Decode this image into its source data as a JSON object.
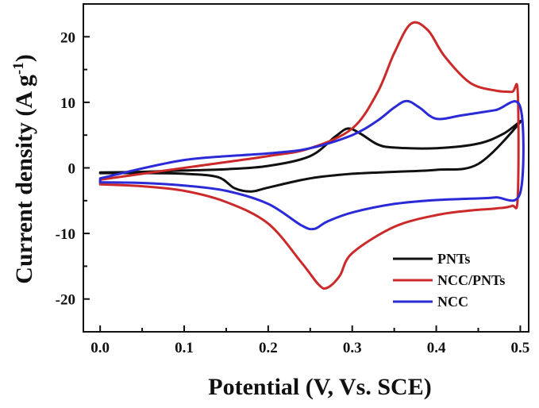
{
  "chart_data": {
    "type": "line",
    "title": "",
    "xlabel": "Potential (V, Vs. SCE)",
    "ylabel_main": "Current density (A g",
    "ylabel_sup": "-1",
    "ylabel_close": ")",
    "xlim": [
      -0.02,
      0.51
    ],
    "ylim": [
      -25,
      25
    ],
    "xticks": [
      "0.0",
      "0.1",
      "0.2",
      "0.3",
      "0.4",
      "0.5"
    ],
    "yticks": [
      "-20",
      "-10",
      "0",
      "10",
      "20"
    ],
    "grid": false,
    "legend_position": "bottom-right",
    "series": [
      {
        "name": "PNTs",
        "color": "#111111",
        "x": [
          0.0,
          0.05,
          0.1,
          0.15,
          0.2,
          0.25,
          0.28,
          0.295,
          0.31,
          0.33,
          0.35,
          0.4,
          0.45,
          0.48,
          0.5,
          0.45,
          0.4,
          0.35,
          0.3,
          0.25,
          0.2,
          0.18,
          0.16,
          0.14,
          0.1,
          0.05,
          0.0
        ],
        "y": [
          -0.7,
          -0.6,
          -0.4,
          -0.2,
          0.3,
          1.8,
          4.8,
          6.0,
          5.2,
          3.6,
          3.1,
          3.0,
          3.7,
          5.2,
          7.0,
          0.6,
          -0.3,
          -0.6,
          -0.9,
          -1.6,
          -3.0,
          -3.6,
          -3.1,
          -1.4,
          -0.9,
          -0.8,
          -0.8
        ]
      },
      {
        "name": "NCC/PNTs",
        "color": "#cc2a2a",
        "x": [
          0.0,
          0.1,
          0.2,
          0.25,
          0.3,
          0.33,
          0.35,
          0.37,
          0.39,
          0.41,
          0.44,
          0.47,
          0.49,
          0.497,
          0.497,
          0.49,
          0.47,
          0.44,
          0.4,
          0.35,
          0.3,
          0.285,
          0.27,
          0.26,
          0.24,
          0.2,
          0.15,
          0.1,
          0.05,
          0.0
        ],
        "y": [
          -1.8,
          0.0,
          1.8,
          3.0,
          6.0,
          11.5,
          17.5,
          22.0,
          21.0,
          17.0,
          13.0,
          11.8,
          11.6,
          11.6,
          -4.5,
          -5.8,
          -6.2,
          -6.5,
          -7.2,
          -9.0,
          -13.0,
          -16.5,
          -18.3,
          -17.8,
          -14.5,
          -8.5,
          -5.2,
          -3.5,
          -2.8,
          -2.5
        ]
      },
      {
        "name": "NCC",
        "color": "#2a2ad6",
        "x": [
          0.0,
          0.1,
          0.2,
          0.25,
          0.3,
          0.33,
          0.35,
          0.365,
          0.38,
          0.4,
          0.43,
          0.47,
          0.5,
          0.5,
          0.47,
          0.44,
          0.4,
          0.35,
          0.3,
          0.27,
          0.255,
          0.24,
          0.2,
          0.15,
          0.1,
          0.05,
          0.0
        ],
        "y": [
          -1.6,
          1.2,
          2.2,
          3.0,
          5.0,
          7.2,
          9.2,
          10.2,
          9.2,
          7.5,
          8.0,
          8.8,
          9.3,
          -3.8,
          -4.5,
          -4.7,
          -4.9,
          -5.5,
          -6.8,
          -8.2,
          -9.3,
          -8.8,
          -5.5,
          -3.5,
          -2.7,
          -2.3,
          -2.2
        ]
      }
    ]
  }
}
